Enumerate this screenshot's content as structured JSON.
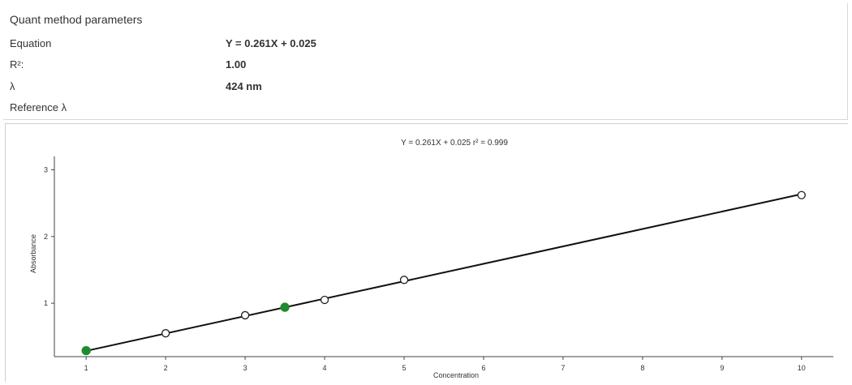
{
  "params": {
    "heading": "Quant method parameters",
    "rows": [
      {
        "label": "Equation",
        "value": "Y = 0.261X + 0.025"
      },
      {
        "label": "R²:",
        "value": "1.00"
      },
      {
        "label": "λ",
        "value": "424 nm"
      },
      {
        "label": "Reference λ",
        "value": ""
      }
    ]
  },
  "chart_data": {
    "type": "scatter",
    "title": "Y = 0.261X + 0.025   r² = 0.999",
    "xlabel": "Concentration",
    "ylabel": "Absorbance",
    "xlim": [
      0.6,
      10.4
    ],
    "ylim": [
      0.2,
      3.2
    ],
    "xticks": [
      1,
      2,
      3,
      4,
      5,
      6,
      7,
      8,
      9,
      10
    ],
    "yticks": [
      1,
      2,
      3
    ],
    "fit": {
      "slope": 0.261,
      "intercept": 0.025,
      "x_range": [
        1,
        10
      ],
      "color": "#111111"
    },
    "series": [
      {
        "marker": "open-circle",
        "color": "#222222",
        "points": [
          {
            "x": 2,
            "y": 0.55
          },
          {
            "x": 3,
            "y": 0.82
          },
          {
            "x": 4,
            "y": 1.05
          },
          {
            "x": 5,
            "y": 1.35
          },
          {
            "x": 10,
            "y": 2.62
          }
        ]
      },
      {
        "marker": "filled-circle",
        "color": "#1e8c2e",
        "points": [
          {
            "x": 1,
            "y": 0.29
          },
          {
            "x": 3.5,
            "y": 0.94
          }
        ]
      }
    ],
    "grid": false
  }
}
